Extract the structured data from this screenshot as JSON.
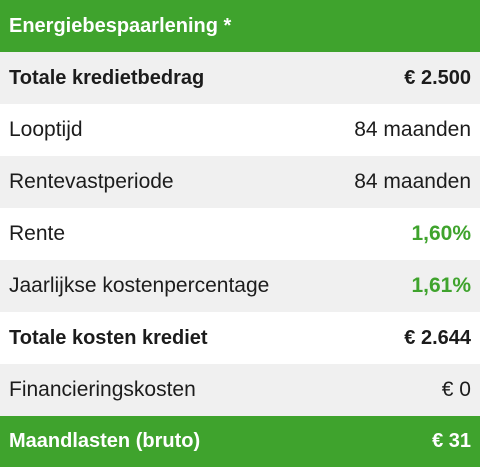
{
  "header": {
    "title": "Energiebespaarlening *"
  },
  "rows": [
    {
      "label": "Totale kredietbedrag",
      "value": "€ 2.500"
    },
    {
      "label": "Looptijd",
      "value": "84 maanden"
    },
    {
      "label": "Rentevastperiode",
      "value": "84 maanden"
    },
    {
      "label": "Rente",
      "value": "1,60%"
    },
    {
      "label": "Jaarlijkse kostenpercentage",
      "value": "1,61%"
    },
    {
      "label": "Totale kosten krediet",
      "value": "€ 2.644"
    },
    {
      "label": "Financieringskosten",
      "value": "€ 0"
    }
  ],
  "footer": {
    "label": "Maandlasten (bruto)",
    "value": "€ 31"
  },
  "colors": {
    "accent": "#3fa32d",
    "shade": "#f0f0f0",
    "text": "#1c1c1c"
  }
}
